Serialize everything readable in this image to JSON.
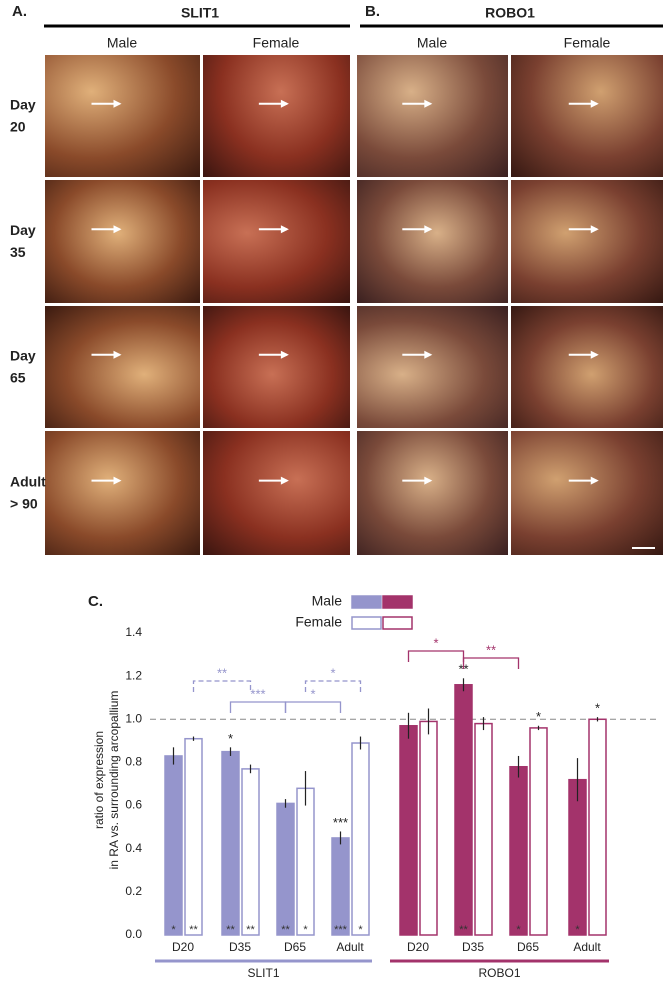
{
  "panel_a": {
    "label": "A.",
    "title": "SLIT1",
    "columns": [
      "Male",
      "Female"
    ]
  },
  "panel_b": {
    "label": "B.",
    "title": "ROBO1",
    "columns": [
      "Male",
      "Female"
    ]
  },
  "rows": [
    [
      "Day",
      "20"
    ],
    [
      "Day",
      "35"
    ],
    [
      "Day",
      "65"
    ],
    [
      "Adult",
      "> 90"
    ]
  ],
  "panel_c": {
    "label": "C."
  },
  "chart_data": {
    "type": "bar",
    "y_label": [
      "ratio of expression",
      "in RA vs. surrounding arcopallium"
    ],
    "ylim": [
      0,
      1.4
    ],
    "yticks": [
      {
        "value": 0,
        "label": "0.0"
      },
      0.2,
      0.4,
      0.6,
      0.8,
      {
        "value": 1,
        "label": "1.0"
      },
      1.2,
      1.4
    ],
    "ref_line": 1,
    "groups": [
      {
        "name": "SLIT1",
        "color": "#9595cc",
        "categories": [
          "D20",
          "D35",
          "D65",
          "Adult"
        ],
        "series": [
          {
            "name": "Male",
            "filled": true,
            "values": [
              0.83,
              0.85,
              0.61,
              0.45
            ],
            "errors": [
              0.04,
              0.02,
              0.02,
              0.03
            ],
            "top_stars": [
              null,
              "*",
              null,
              "***"
            ],
            "bottom_stars": [
              "*",
              "**",
              "**",
              "***"
            ]
          },
          {
            "name": "Female",
            "filled": false,
            "values": [
              0.91,
              0.77,
              0.68,
              0.89
            ],
            "errors": [
              0.01,
              0.02,
              0.08,
              0.03
            ],
            "top_stars": [
              null,
              null,
              null,
              null
            ],
            "bottom_stars": [
              "**",
              "**",
              "*",
              "*"
            ]
          }
        ],
        "brackets": [
          {
            "series": 1,
            "from": 0,
            "to": 1,
            "label": "**",
            "dashed": true
          },
          {
            "series": 1,
            "from": 2,
            "to": 3,
            "label": "*",
            "dashed": true
          },
          {
            "series": 0,
            "from": 1,
            "to": 2,
            "label": "***",
            "dashed": false
          },
          {
            "series": 0,
            "from": 2,
            "to": 3,
            "label": "*",
            "dashed": false
          }
        ]
      },
      {
        "name": "ROBO1",
        "color": "#a3336b",
        "categories": [
          "D20",
          "D35",
          "D65",
          "Adult"
        ],
        "series": [
          {
            "name": "Male",
            "filled": true,
            "values": [
              0.97,
              1.16,
              0.78,
              0.72
            ],
            "errors": [
              0.06,
              0.03,
              0.05,
              0.1
            ],
            "top_stars": [
              null,
              "**",
              null,
              null
            ],
            "bottom_stars": [
              null,
              "**",
              "*",
              "*"
            ]
          },
          {
            "name": "Female",
            "filled": false,
            "values": [
              0.99,
              0.98,
              0.96,
              1.0
            ],
            "errors": [
              0.06,
              0.03,
              0.01,
              0.01
            ],
            "top_stars": [
              null,
              null,
              "*",
              "*"
            ],
            "bottom_stars": [
              null,
              null,
              null,
              null
            ]
          }
        ],
        "brackets": [
          {
            "series": 0,
            "from": 0,
            "to": 1,
            "label": "*",
            "dashed": false
          },
          {
            "series": 0,
            "from": 1,
            "to": 2,
            "label": "**",
            "dashed": false
          }
        ]
      }
    ]
  }
}
